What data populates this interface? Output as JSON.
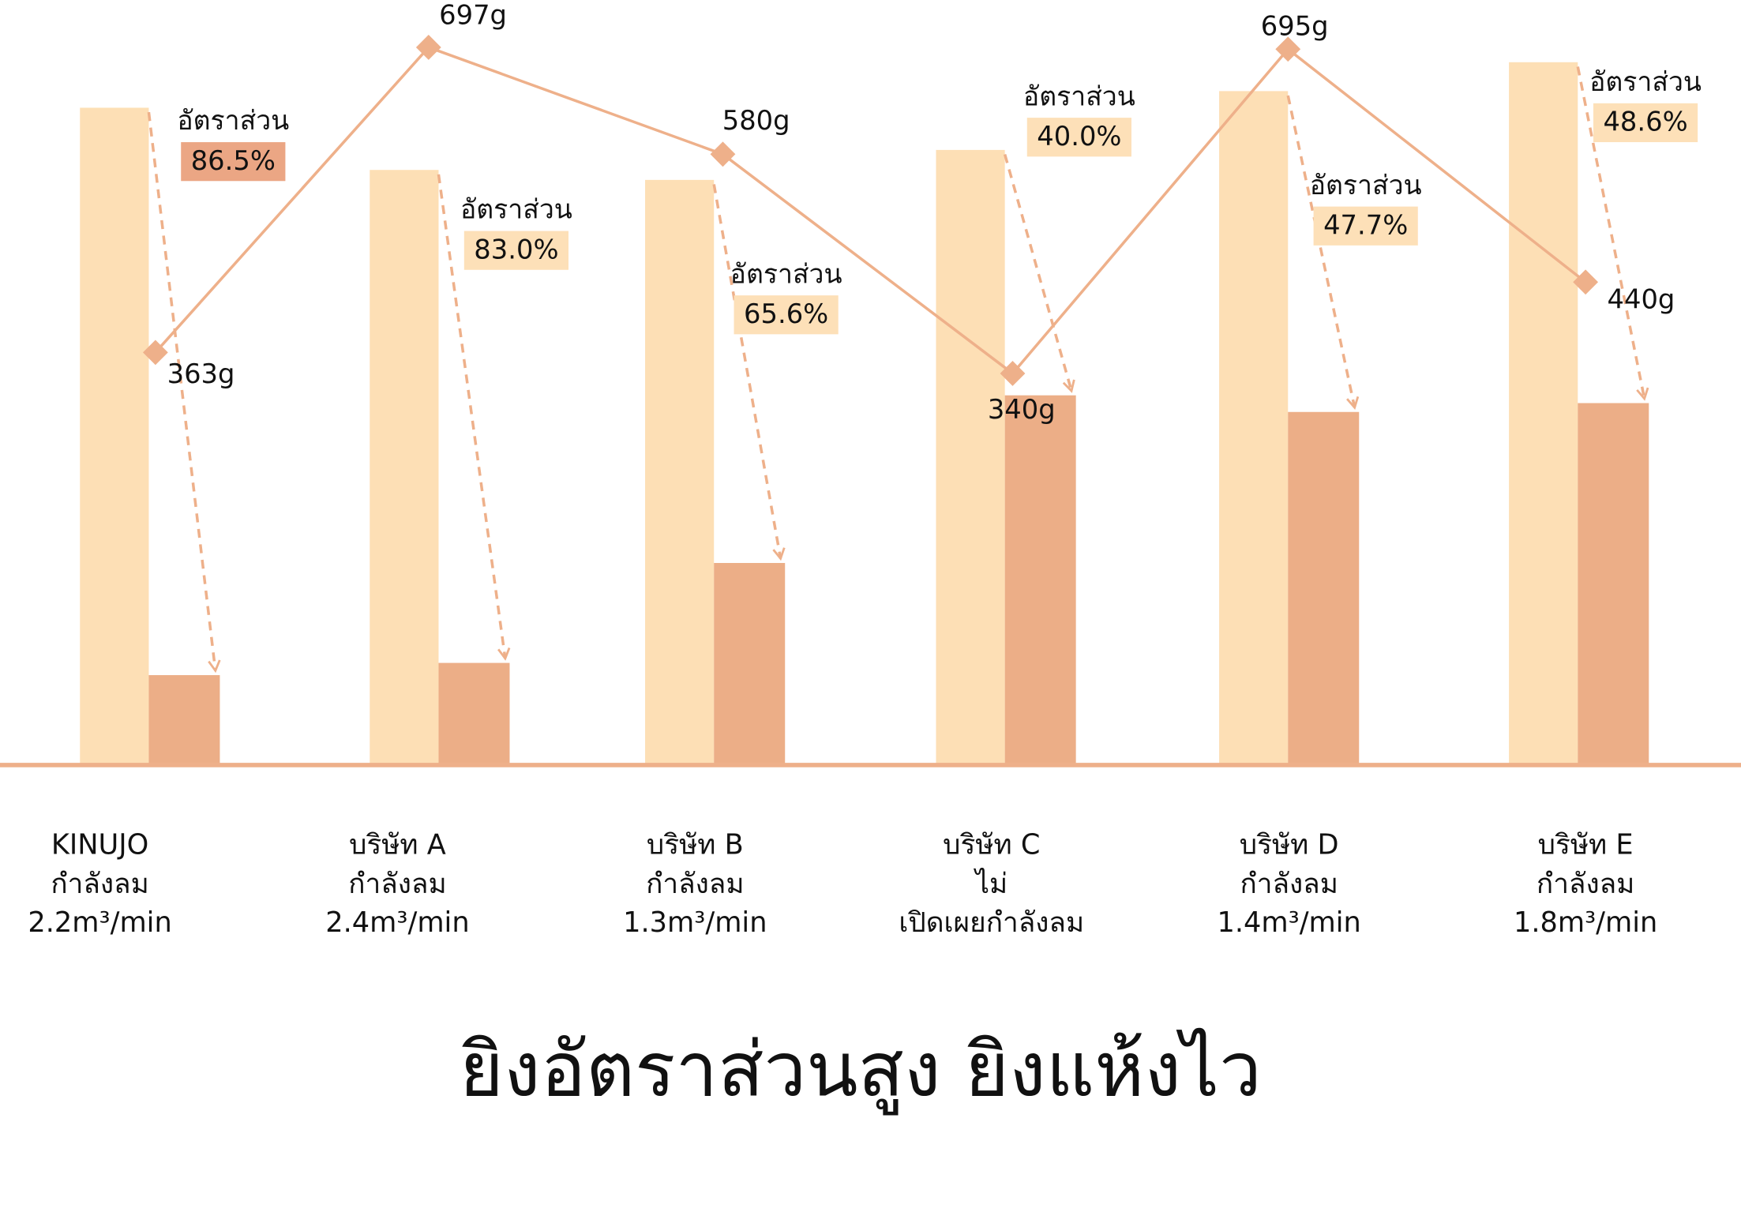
{
  "chart_data": {
    "type": "bar",
    "title": "ยิงอัตราส่วนสูง ยิงแห้งไว",
    "categories": [
      [
        "KINUJO",
        "กำลังลม",
        "2.2m³/min"
      ],
      [
        "บริษัท A",
        "กำลังลม",
        "2.4m³/min"
      ],
      [
        "บริษัท B",
        "กำลังลม",
        "1.3m³/min"
      ],
      [
        "บริษัท C",
        "ไม่",
        "เปิดเผยกำลังลม"
      ],
      [
        "บริษัท D",
        "กำลังลม",
        "1.4m³/min"
      ],
      [
        "บริษัท E",
        "กำลังลม",
        "1.8m³/min"
      ]
    ],
    "ylim": [
      0,
      640
    ],
    "y2lim": [
      0,
      750
    ],
    "series": [
      {
        "color": "#fddfb5",
        "values": [
          591,
          535,
          526,
          553,
          606,
          632
        ]
      },
      {
        "color": "#ecae87",
        "values": [
          80,
          91,
          181,
          332,
          317,
          325
        ]
      },
      {
        "type": "line",
        "axis": "y2",
        "color": "#eeb08a",
        "values": [
          363,
          697,
          580,
          340,
          695,
          440
        ],
        "value_labels": [
          "363g",
          "697g",
          "580g",
          "340g",
          "695g",
          "440g"
        ]
      }
    ],
    "ratio_label": "อัตราส่วน",
    "ratios": {
      "values": [
        86.5,
        83.0,
        65.6,
        40.0,
        47.7,
        48.6
      ],
      "value_labels": [
        "86.5%",
        "83.0%",
        "65.6%",
        "40.0%",
        "47.7%",
        "48.6%"
      ],
      "colors": [
        "#eba684",
        "#fde0b8",
        "#fde0b8",
        "#fde0b8",
        "#fde0b8",
        "#fde0b8"
      ]
    },
    "axis_color": "#eeb08a"
  }
}
